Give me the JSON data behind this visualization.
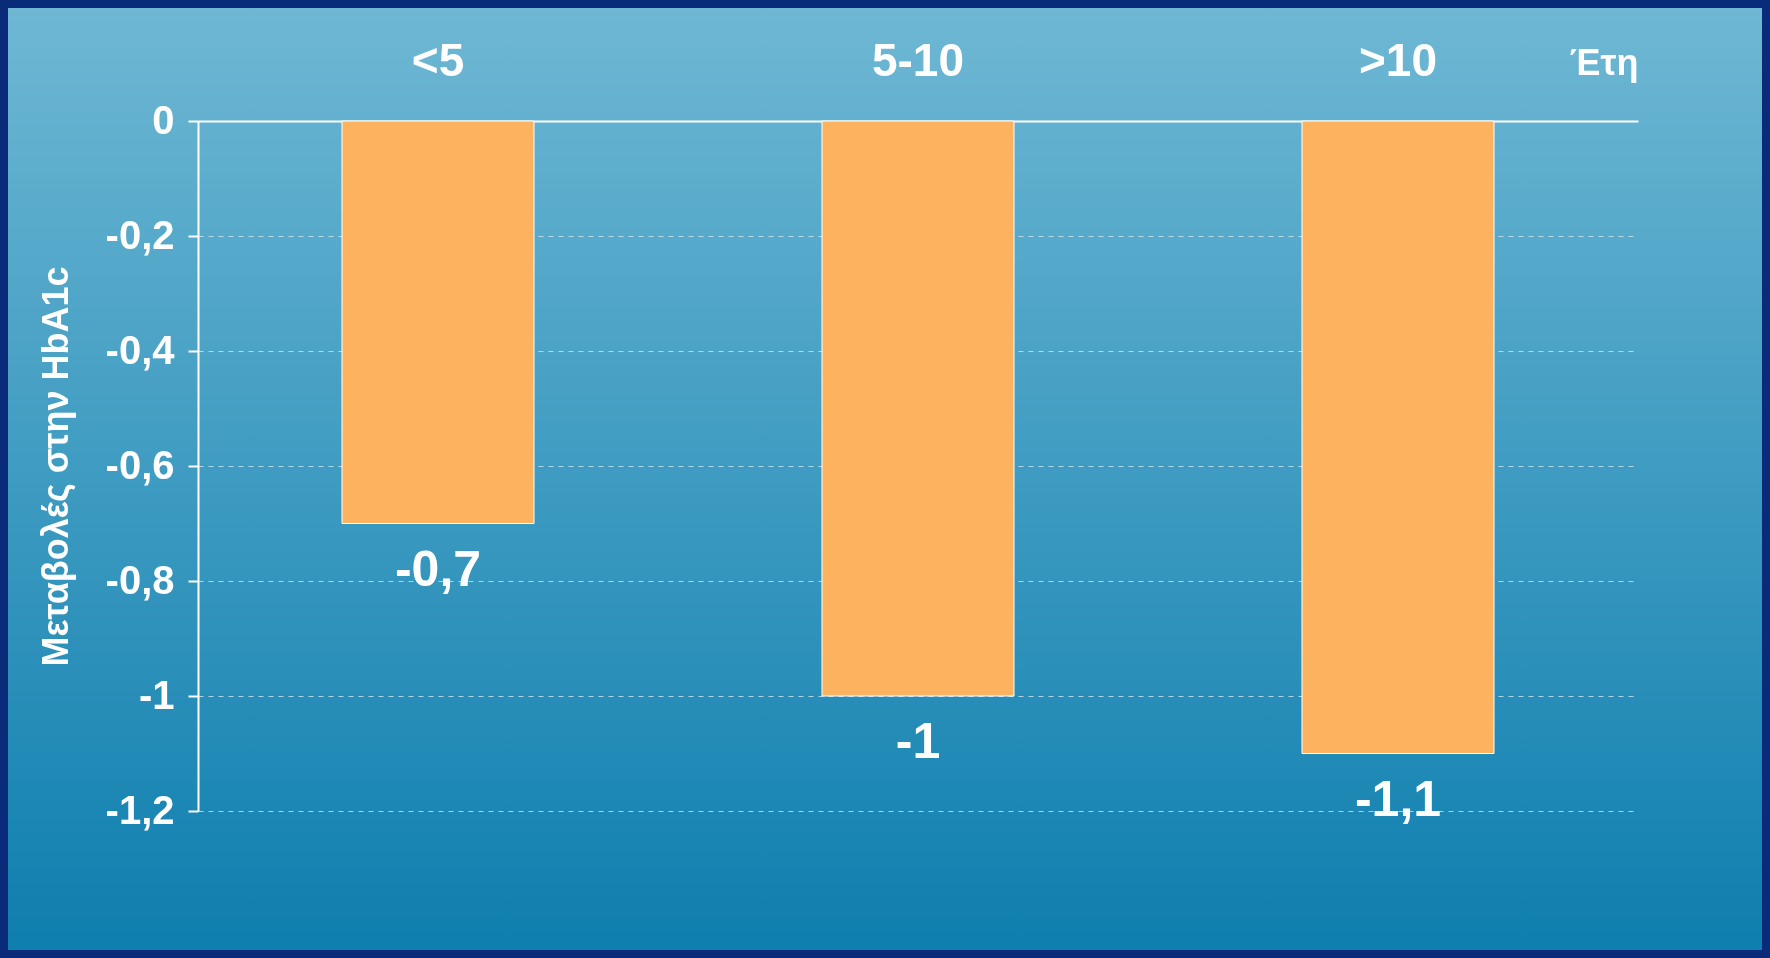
{
  "chart_data": {
    "type": "bar",
    "xlabel": "Έτη",
    "ylabel": "Μεταβολές στην HbA1c",
    "categories": [
      "<5",
      "5-10",
      ">10"
    ],
    "values": [
      -0.7,
      -1,
      -1.1
    ],
    "value_labels": [
      "-0,7",
      "-1",
      "-1,1"
    ],
    "color": "#fdb25f",
    "ylim": [
      -1.2,
      0
    ],
    "yticks": [
      0,
      {
        "value": -0.2,
        "label": "-0,2"
      },
      {
        "value": -0.4,
        "label": "-0,4"
      },
      {
        "value": -0.6,
        "label": "-0,6"
      },
      {
        "value": -0.8,
        "label": "-0,8"
      },
      -1,
      {
        "value": -1.2,
        "label": "-1,2"
      }
    ],
    "grid": "y"
  }
}
